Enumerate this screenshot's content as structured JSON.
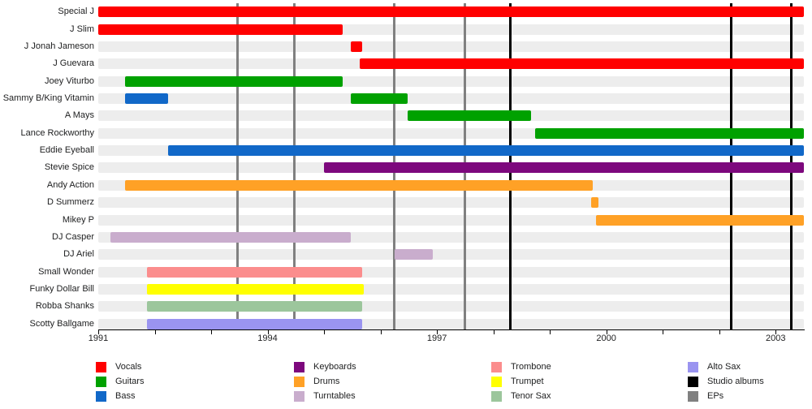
{
  "chart_data": {
    "type": "gantt-timeline",
    "title": "",
    "x_axis": {
      "start_year": 1991,
      "end_year": 2003.5,
      "tick_every_years": 1,
      "labeled_ticks": [
        "1991",
        "1994",
        "1997",
        "2000",
        "2003"
      ],
      "labeled_tick_values": [
        1991,
        1994,
        1997,
        2000,
        2003
      ]
    },
    "roles": [
      {
        "id": "vocals",
        "label": "Vocals",
        "color": "#ff0000"
      },
      {
        "id": "guitars",
        "label": "Guitars",
        "color": "#00a100"
      },
      {
        "id": "bass",
        "label": "Bass",
        "color": "#1168c8"
      },
      {
        "id": "keyboards",
        "label": "Keyboards",
        "color": "#7d087d"
      },
      {
        "id": "drums",
        "label": "Drums",
        "color": "#ffa126"
      },
      {
        "id": "turntables",
        "label": "Turntables",
        "color": "#c9adcd"
      },
      {
        "id": "trombone",
        "label": "Trombone",
        "color": "#fb8d8d"
      },
      {
        "id": "trumpet",
        "label": "Trumpet",
        "color": "#ffff00"
      },
      {
        "id": "tenor_sax",
        "label": "Tenor Sax",
        "color": "#9cc69c"
      },
      {
        "id": "alto_sax",
        "label": "Alto Sax",
        "color": "#9a94f0"
      },
      {
        "id": "studio_albums",
        "label": "Studio albums",
        "color": "#000000"
      },
      {
        "id": "eps",
        "label": "EPs",
        "color": "#808080"
      }
    ],
    "members": [
      {
        "name": "Special J",
        "segments": [
          {
            "role": "vocals",
            "start": 1991.0,
            "end": 2003.5
          }
        ]
      },
      {
        "name": "J Slim",
        "segments": [
          {
            "role": "vocals",
            "start": 1991.0,
            "end": 1995.33
          }
        ]
      },
      {
        "name": "J Jonah Jameson",
        "segments": [
          {
            "role": "vocals",
            "start": 1995.47,
            "end": 1995.67
          }
        ]
      },
      {
        "name": "J Guevara",
        "segments": [
          {
            "role": "vocals",
            "start": 1995.63,
            "end": 2003.5
          }
        ]
      },
      {
        "name": "Joey Viturbo",
        "segments": [
          {
            "role": "guitars",
            "start": 1991.47,
            "end": 1995.33
          }
        ]
      },
      {
        "name": "Sammy B/King Vitamin",
        "segments": [
          {
            "role": "bass",
            "start": 1991.47,
            "end": 1992.23
          },
          {
            "role": "guitars",
            "start": 1995.47,
            "end": 1996.48
          }
        ]
      },
      {
        "name": "A Mays",
        "segments": [
          {
            "role": "guitars",
            "start": 1996.48,
            "end": 1998.66
          }
        ]
      },
      {
        "name": "Lance Rockworthy",
        "segments": [
          {
            "role": "guitars",
            "start": 1998.74,
            "end": 2003.5
          }
        ]
      },
      {
        "name": "Eddie Eyeball",
        "segments": [
          {
            "role": "bass",
            "start": 1992.23,
            "end": 2003.5
          }
        ]
      },
      {
        "name": "Stevie Spice",
        "segments": [
          {
            "role": "keyboards",
            "start": 1995.0,
            "end": 2003.5
          }
        ]
      },
      {
        "name": "Andy Action",
        "segments": [
          {
            "role": "drums",
            "start": 1991.47,
            "end": 1999.76
          }
        ]
      },
      {
        "name": "D Summerz",
        "segments": [
          {
            "role": "drums",
            "start": 1999.73,
            "end": 1999.86
          }
        ]
      },
      {
        "name": "Mikey P",
        "segments": [
          {
            "role": "drums",
            "start": 1999.82,
            "end": 2003.5
          }
        ]
      },
      {
        "name": "DJ Casper",
        "segments": [
          {
            "role": "turntables",
            "start": 1991.22,
            "end": 1995.48
          }
        ]
      },
      {
        "name": "DJ Ariel",
        "segments": [
          {
            "role": "turntables",
            "start": 1996.25,
            "end": 1996.93
          }
        ]
      },
      {
        "name": "Small Wonder",
        "segments": [
          {
            "role": "trombone",
            "start": 1991.87,
            "end": 1995.67
          }
        ]
      },
      {
        "name": "Funky Dollar Bill",
        "segments": [
          {
            "role": "trumpet",
            "start": 1991.87,
            "end": 1995.7
          }
        ]
      },
      {
        "name": "Robba Shanks",
        "segments": [
          {
            "role": "tenor_sax",
            "start": 1991.87,
            "end": 1995.67
          }
        ]
      },
      {
        "name": "Scotty Ballgame",
        "segments": [
          {
            "role": "alto_sax",
            "start": 1991.87,
            "end": 1995.67
          }
        ]
      }
    ],
    "releases": {
      "eps": [
        1993.47,
        1994.47,
        1996.24,
        1997.5
      ],
      "studio_albums": [
        1998.3,
        2002.21,
        2003.27
      ]
    },
    "legend": {
      "columns": [
        [
          "Vocals",
          "Guitars",
          "Bass"
        ],
        [
          "Keyboards",
          "Drums",
          "Turntables"
        ],
        [
          "Trombone",
          "Trumpet",
          "Tenor Sax"
        ],
        [
          "Alto Sax",
          "Studio albums",
          "EPs"
        ]
      ]
    },
    "layout_hints": {
      "grid": "vertical release lines only",
      "row_background": "#ededed",
      "legend_position": "bottom, 4 columns x 3 rows"
    }
  }
}
